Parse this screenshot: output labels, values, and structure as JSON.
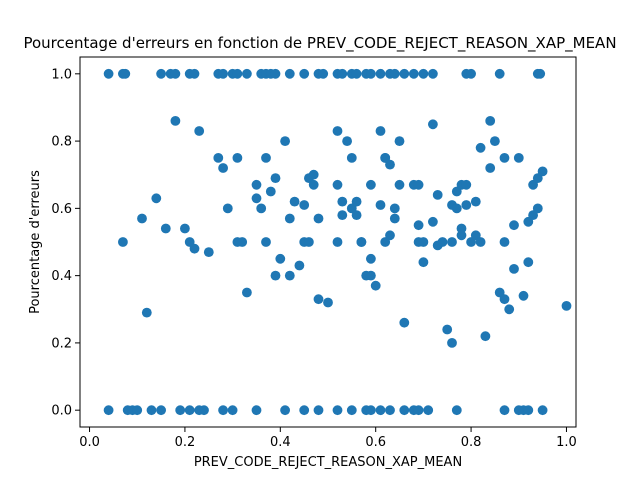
{
  "chart_data": {
    "type": "scatter",
    "title": "Pourcentage d'erreurs en fonction de PREV_CODE_REJECT_REASON_XAP_MEAN",
    "xlabel": "PREV_CODE_REJECT_REASON_XAP_MEAN",
    "ylabel": "Pourcentage d'erreurs",
    "xlim": [
      -0.02,
      1.02
    ],
    "ylim": [
      -0.05,
      1.05
    ],
    "xticks": [
      0.0,
      0.2,
      0.4,
      0.6,
      0.8,
      1.0
    ],
    "xtick_labels": [
      "0.0",
      "0.2",
      "0.4",
      "0.6",
      "0.8",
      "1.0"
    ],
    "yticks": [
      0.0,
      0.2,
      0.4,
      0.6,
      0.8,
      1.0
    ],
    "ytick_labels": [
      "0.0",
      "0.2",
      "0.4",
      "0.6",
      "0.8",
      "1.0"
    ],
    "grid": false,
    "marker_color": "#1f77b4",
    "series": [
      {
        "points": [
          [
            0.04,
            1.0
          ],
          [
            0.07,
            1.0
          ],
          [
            0.075,
            1.0
          ],
          [
            0.15,
            1.0
          ],
          [
            0.17,
            1.0
          ],
          [
            0.18,
            1.0
          ],
          [
            0.21,
            1.0
          ],
          [
            0.22,
            1.0
          ],
          [
            0.27,
            1.0
          ],
          [
            0.28,
            1.0
          ],
          [
            0.3,
            1.0
          ],
          [
            0.31,
            1.0
          ],
          [
            0.33,
            1.0
          ],
          [
            0.36,
            1.0
          ],
          [
            0.37,
            1.0
          ],
          [
            0.38,
            1.0
          ],
          [
            0.39,
            1.0
          ],
          [
            0.42,
            1.0
          ],
          [
            0.45,
            1.0
          ],
          [
            0.48,
            1.0
          ],
          [
            0.49,
            1.0
          ],
          [
            0.52,
            1.0
          ],
          [
            0.53,
            1.0
          ],
          [
            0.55,
            1.0
          ],
          [
            0.56,
            1.0
          ],
          [
            0.58,
            1.0
          ],
          [
            0.59,
            1.0
          ],
          [
            0.61,
            1.0
          ],
          [
            0.63,
            1.0
          ],
          [
            0.64,
            1.0
          ],
          [
            0.66,
            1.0
          ],
          [
            0.68,
            1.0
          ],
          [
            0.7,
            1.0
          ],
          [
            0.72,
            1.0
          ],
          [
            0.79,
            1.0
          ],
          [
            0.8,
            1.0
          ],
          [
            0.86,
            1.0
          ],
          [
            0.94,
            1.0
          ],
          [
            0.945,
            1.0
          ],
          [
            0.04,
            0.0
          ],
          [
            0.08,
            0.0
          ],
          [
            0.09,
            0.0
          ],
          [
            0.1,
            0.0
          ],
          [
            0.13,
            0.0
          ],
          [
            0.15,
            0.0
          ],
          [
            0.19,
            0.0
          ],
          [
            0.21,
            0.0
          ],
          [
            0.23,
            0.0
          ],
          [
            0.24,
            0.0
          ],
          [
            0.28,
            0.0
          ],
          [
            0.3,
            0.0
          ],
          [
            0.35,
            0.0
          ],
          [
            0.41,
            0.0
          ],
          [
            0.45,
            0.0
          ],
          [
            0.48,
            0.0
          ],
          [
            0.52,
            0.0
          ],
          [
            0.55,
            0.0
          ],
          [
            0.58,
            0.0
          ],
          [
            0.59,
            0.0
          ],
          [
            0.61,
            0.0
          ],
          [
            0.63,
            0.0
          ],
          [
            0.66,
            0.0
          ],
          [
            0.68,
            0.0
          ],
          [
            0.69,
            0.0
          ],
          [
            0.71,
            0.0
          ],
          [
            0.77,
            0.0
          ],
          [
            0.87,
            0.0
          ],
          [
            0.9,
            0.0
          ],
          [
            0.91,
            0.0
          ],
          [
            0.92,
            0.0
          ],
          [
            0.95,
            0.0
          ],
          [
            0.07,
            0.5
          ],
          [
            0.11,
            0.57
          ],
          [
            0.12,
            0.29
          ],
          [
            0.14,
            0.63
          ],
          [
            0.16,
            0.54
          ],
          [
            0.18,
            0.86
          ],
          [
            0.2,
            0.54
          ],
          [
            0.21,
            0.5
          ],
          [
            0.22,
            0.48
          ],
          [
            0.23,
            0.83
          ],
          [
            0.25,
            0.47
          ],
          [
            0.27,
            0.75
          ],
          [
            0.28,
            0.72
          ],
          [
            0.29,
            0.6
          ],
          [
            0.31,
            0.5
          ],
          [
            0.31,
            0.75
          ],
          [
            0.32,
            0.5
          ],
          [
            0.33,
            0.35
          ],
          [
            0.35,
            0.67
          ],
          [
            0.35,
            0.63
          ],
          [
            0.36,
            0.6
          ],
          [
            0.37,
            0.75
          ],
          [
            0.37,
            0.5
          ],
          [
            0.38,
            0.65
          ],
          [
            0.39,
            0.69
          ],
          [
            0.39,
            0.4
          ],
          [
            0.4,
            0.45
          ],
          [
            0.41,
            0.8
          ],
          [
            0.42,
            0.57
          ],
          [
            0.42,
            0.4
          ],
          [
            0.43,
            0.62
          ],
          [
            0.44,
            0.43
          ],
          [
            0.45,
            0.61
          ],
          [
            0.45,
            0.5
          ],
          [
            0.46,
            0.69
          ],
          [
            0.46,
            0.5
          ],
          [
            0.47,
            0.67
          ],
          [
            0.47,
            0.7
          ],
          [
            0.48,
            0.57
          ],
          [
            0.48,
            0.33
          ],
          [
            0.5,
            0.32
          ],
          [
            0.52,
            0.83
          ],
          [
            0.52,
            0.67
          ],
          [
            0.52,
            0.5
          ],
          [
            0.53,
            0.62
          ],
          [
            0.53,
            0.58
          ],
          [
            0.54,
            0.8
          ],
          [
            0.55,
            0.75
          ],
          [
            0.55,
            0.6
          ],
          [
            0.56,
            0.58
          ],
          [
            0.56,
            0.62
          ],
          [
            0.57,
            0.5
          ],
          [
            0.57,
            0.5
          ],
          [
            0.58,
            0.4
          ],
          [
            0.59,
            0.4
          ],
          [
            0.59,
            0.45
          ],
          [
            0.59,
            0.67
          ],
          [
            0.6,
            0.37
          ],
          [
            0.61,
            0.83
          ],
          [
            0.61,
            0.61
          ],
          [
            0.62,
            0.75
          ],
          [
            0.62,
            0.75
          ],
          [
            0.62,
            0.5
          ],
          [
            0.63,
            0.52
          ],
          [
            0.63,
            0.73
          ],
          [
            0.64,
            0.57
          ],
          [
            0.64,
            0.6
          ],
          [
            0.65,
            0.67
          ],
          [
            0.65,
            0.8
          ],
          [
            0.66,
            0.26
          ],
          [
            0.68,
            0.67
          ],
          [
            0.69,
            0.67
          ],
          [
            0.69,
            0.55
          ],
          [
            0.69,
            0.5
          ],
          [
            0.7,
            0.44
          ],
          [
            0.7,
            0.5
          ],
          [
            0.72,
            0.85
          ],
          [
            0.72,
            0.56
          ],
          [
            0.73,
            0.64
          ],
          [
            0.73,
            0.49
          ],
          [
            0.74,
            0.5
          ],
          [
            0.75,
            0.24
          ],
          [
            0.76,
            0.2
          ],
          [
            0.76,
            0.5
          ],
          [
            0.76,
            0.61
          ],
          [
            0.77,
            0.65
          ],
          [
            0.77,
            0.6
          ],
          [
            0.78,
            0.52
          ],
          [
            0.78,
            0.67
          ],
          [
            0.78,
            0.54
          ],
          [
            0.79,
            0.61
          ],
          [
            0.79,
            0.67
          ],
          [
            0.8,
            0.5
          ],
          [
            0.81,
            0.52
          ],
          [
            0.81,
            0.62
          ],
          [
            0.82,
            0.78
          ],
          [
            0.82,
            0.5
          ],
          [
            0.83,
            0.22
          ],
          [
            0.84,
            0.86
          ],
          [
            0.84,
            0.72
          ],
          [
            0.85,
            0.8
          ],
          [
            0.86,
            0.35
          ],
          [
            0.87,
            0.33
          ],
          [
            0.87,
            0.5
          ],
          [
            0.87,
            0.75
          ],
          [
            0.88,
            0.3
          ],
          [
            0.89,
            0.55
          ],
          [
            0.89,
            0.42
          ],
          [
            0.9,
            0.75
          ],
          [
            0.91,
            0.34
          ],
          [
            0.92,
            0.56
          ],
          [
            0.92,
            0.44
          ],
          [
            0.93,
            0.67
          ],
          [
            0.93,
            0.58
          ],
          [
            0.94,
            0.6
          ],
          [
            0.94,
            0.69
          ],
          [
            0.95,
            0.71
          ],
          [
            1.0,
            0.31
          ]
        ]
      }
    ]
  }
}
